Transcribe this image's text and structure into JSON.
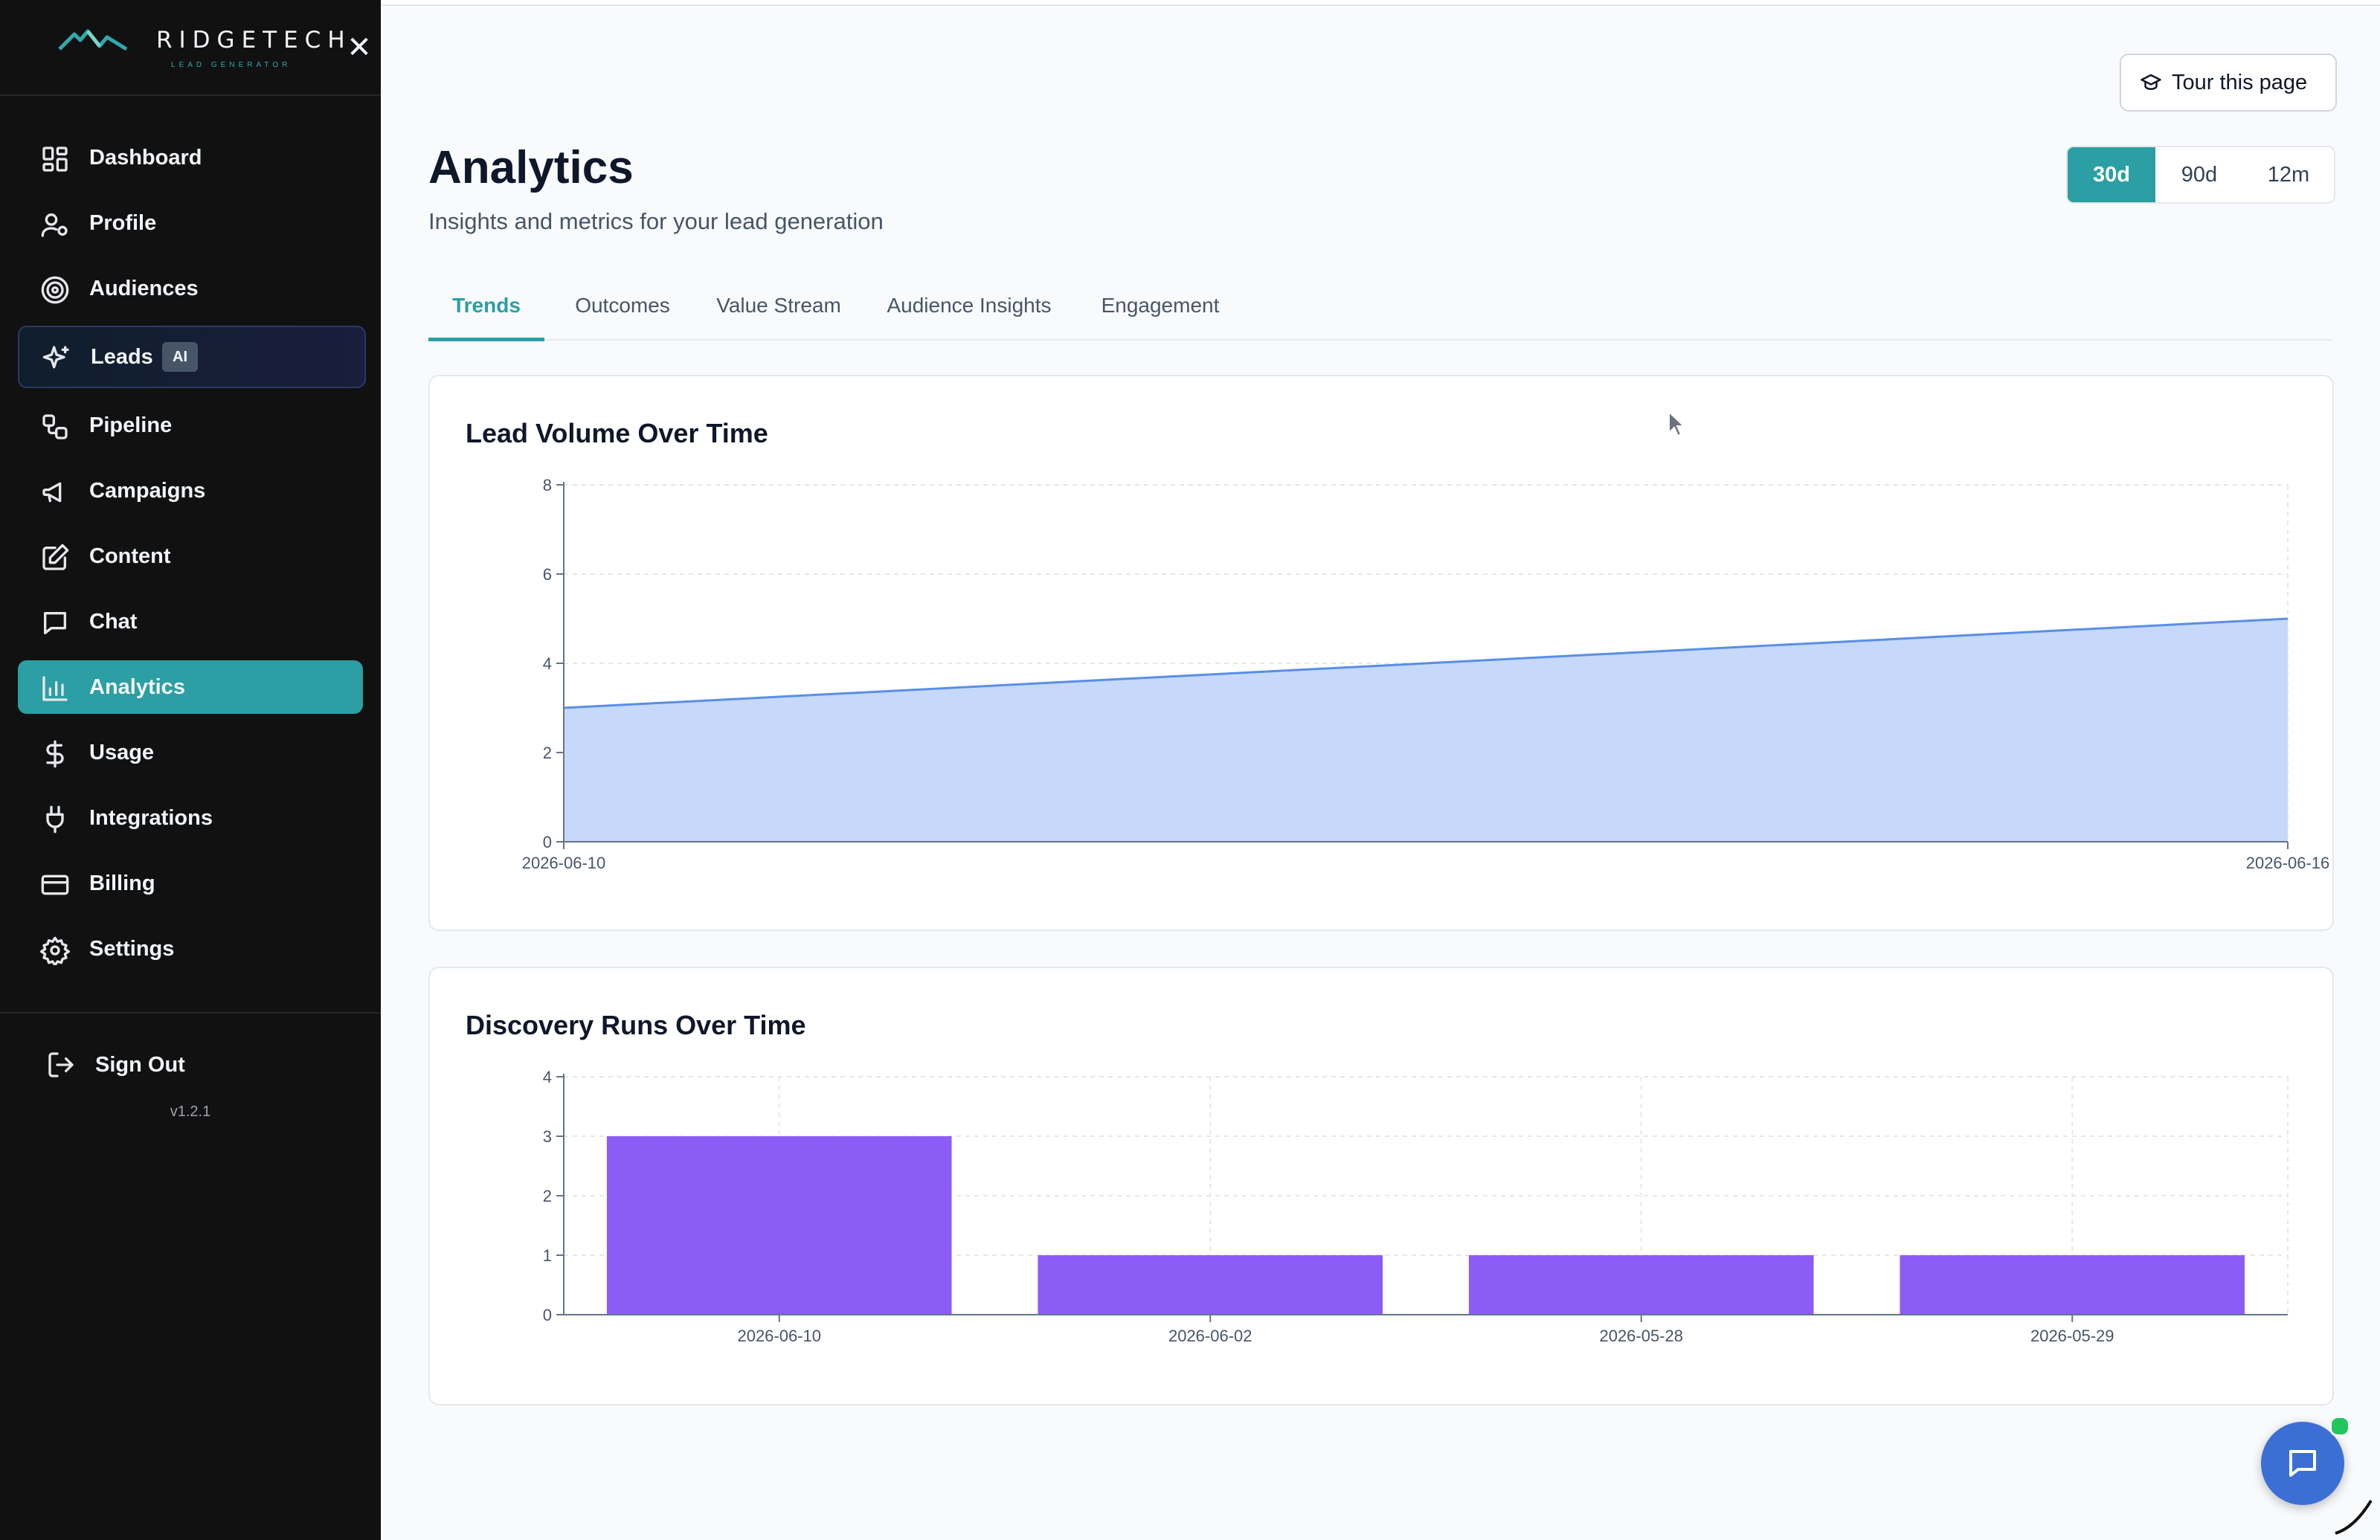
{
  "brand": {
    "name": "RIDGETECH",
    "tagline": "LEAD GENERATOR"
  },
  "sidebar": {
    "items": [
      {
        "label": "Dashboard",
        "icon": "dashboard-icon"
      },
      {
        "label": "Profile",
        "icon": "user-settings-icon"
      },
      {
        "label": "Audiences",
        "icon": "target-icon"
      },
      {
        "label": "Leads",
        "icon": "sparkles-icon",
        "badge": "AI"
      },
      {
        "label": "Pipeline",
        "icon": "workflow-icon"
      },
      {
        "label": "Campaigns",
        "icon": "megaphone-icon"
      },
      {
        "label": "Content",
        "icon": "edit-icon"
      },
      {
        "label": "Chat",
        "icon": "chat-icon"
      },
      {
        "label": "Analytics",
        "icon": "bar-chart-icon"
      },
      {
        "label": "Usage",
        "icon": "dollar-icon"
      },
      {
        "label": "Integrations",
        "icon": "plug-icon"
      },
      {
        "label": "Billing",
        "icon": "credit-card-icon"
      },
      {
        "label": "Settings",
        "icon": "gear-icon"
      }
    ],
    "active": "Analytics",
    "sign_out": "Sign Out",
    "version": "v1.2.1"
  },
  "header": {
    "title": "Analytics",
    "subtitle": "Insights and metrics for your lead generation",
    "tour_label": "Tour this page",
    "ranges": [
      "30d",
      "90d",
      "12m"
    ],
    "selected_range": "30d"
  },
  "tabs": [
    "Trends",
    "Outcomes",
    "Value Stream",
    "Audience Insights",
    "Engagement"
  ],
  "active_tab": "Trends",
  "colors": {
    "accent": "#2b9fa3",
    "area_fill": "#c6d9fb",
    "area_line": "#5a8ee8",
    "bar": "#8b5cf6",
    "sidebar_bg": "#111111"
  },
  "chart_data": [
    {
      "type": "area",
      "title": "Lead Volume Over Time",
      "x": [
        "2026-06-10",
        "2026-06-16"
      ],
      "values": [
        3,
        5
      ],
      "ylim": [
        0,
        8
      ],
      "yticks": [
        0,
        2,
        4,
        6,
        8
      ],
      "grid": true
    },
    {
      "type": "bar",
      "title": "Discovery Runs Over Time",
      "categories": [
        "2026-06-10",
        "2026-06-02",
        "2026-05-28",
        "2026-05-29"
      ],
      "values": [
        3,
        1,
        1,
        1
      ],
      "ylim": [
        0,
        4
      ],
      "yticks": [
        0,
        1,
        2,
        3,
        4
      ],
      "grid": true
    }
  ]
}
